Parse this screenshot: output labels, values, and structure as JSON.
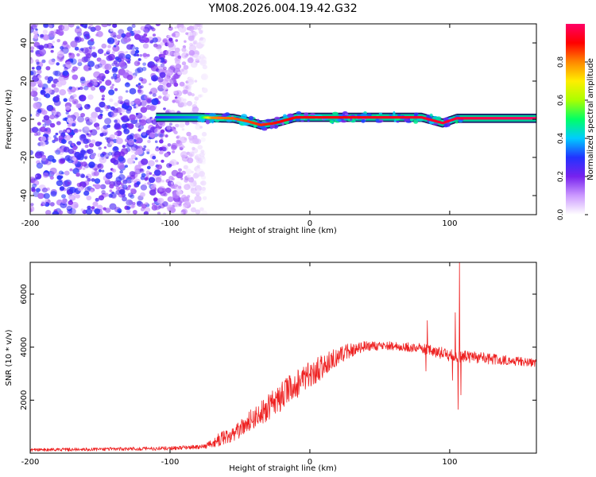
{
  "title": "YM08.2026.004.19.42.G32",
  "chart_data": [
    {
      "type": "heatmap",
      "name": "spectrogram",
      "xlabel": "Height of straight line (km)",
      "ylabel": "Frequency (Hz)",
      "xlim": [
        -200,
        162
      ],
      "ylim": [
        -50,
        50
      ],
      "xticks": [
        -200,
        -100,
        0,
        100
      ],
      "yticks": [
        -40,
        -20,
        0,
        20,
        40
      ],
      "colorbar": {
        "label": "Normalized spectral amplitude",
        "range": [
          0,
          1
        ],
        "ticks": [
          0.0,
          0.2,
          0.4,
          0.6,
          0.8
        ],
        "colormap": [
          "#ffffff",
          "#cc99ff",
          "#7722ee",
          "#2233ff",
          "#00ccff",
          "#00ff66",
          "#aaff00",
          "#ffee00",
          "#ff8800",
          "#ff0000",
          "#ff0066"
        ]
      },
      "noise_region": {
        "x": [
          -200,
          -75
        ],
        "freq": [
          -50,
          50
        ],
        "amplitude": [
          0.05,
          0.3
        ]
      },
      "carrier": {
        "x_start": -110,
        "x_end": 162,
        "freq_track": [
          {
            "x": -110,
            "f": 1
          },
          {
            "x": -80,
            "f": 1
          },
          {
            "x": -55,
            "f": 0.5
          },
          {
            "x": -45,
            "f": -1
          },
          {
            "x": -35,
            "f": -3
          },
          {
            "x": -25,
            "f": -2
          },
          {
            "x": -10,
            "f": 1
          },
          {
            "x": 20,
            "f": 1
          },
          {
            "x": 80,
            "f": 1
          },
          {
            "x": 95,
            "f": -2
          },
          {
            "x": 105,
            "f": 0.5
          },
          {
            "x": 162,
            "f": 0.5
          }
        ],
        "amplitude_track": [
          {
            "x": -110,
            "a": 0.3
          },
          {
            "x": -80,
            "a": 0.35
          },
          {
            "x": -70,
            "a": 0.8
          },
          {
            "x": -20,
            "a": 0.9
          },
          {
            "x": 100,
            "a": 0.95
          },
          {
            "x": 162,
            "a": 1.0
          }
        ]
      }
    },
    {
      "type": "line",
      "name": "snr",
      "xlabel": "Height of straight line (km)",
      "ylabel": "SNR (10 * v/v)",
      "xlim": [
        -200,
        162
      ],
      "ylim": [
        0,
        7200
      ],
      "xticks": [
        -200,
        -100,
        0,
        100
      ],
      "yticks": [
        2000,
        4000,
        6000
      ],
      "color": "#ee2222",
      "series": [
        {
          "name": "SNR",
          "envelope": [
            {
              "x": -200,
              "mean": 120,
              "spread": 60
            },
            {
              "x": -100,
              "mean": 180,
              "spread": 70
            },
            {
              "x": -75,
              "mean": 250,
              "spread": 80
            },
            {
              "x": -65,
              "mean": 500,
              "spread": 250
            },
            {
              "x": -50,
              "mean": 900,
              "spread": 350
            },
            {
              "x": -30,
              "mean": 1700,
              "spread": 550
            },
            {
              "x": -10,
              "mean": 2600,
              "spread": 550
            },
            {
              "x": 10,
              "mean": 3300,
              "spread": 450
            },
            {
              "x": 25,
              "mean": 3800,
              "spread": 300
            },
            {
              "x": 40,
              "mean": 4050,
              "spread": 180
            },
            {
              "x": 60,
              "mean": 4050,
              "spread": 160
            },
            {
              "x": 80,
              "mean": 3950,
              "spread": 200
            },
            {
              "x": 100,
              "mean": 3700,
              "spread": 250
            },
            {
              "x": 130,
              "mean": 3550,
              "spread": 200
            },
            {
              "x": 162,
              "mean": 3400,
              "spread": 150
            }
          ],
          "features": [
            {
              "x": 83,
              "value": 3100
            },
            {
              "x": 84,
              "value": 5000
            },
            {
              "x": 102,
              "value": 2750
            },
            {
              "x": 104,
              "value": 5300
            },
            {
              "x": 106,
              "value": 1650
            },
            {
              "x": 107,
              "value": 7200
            },
            {
              "x": 108,
              "value": 2200
            }
          ]
        }
      ]
    }
  ]
}
